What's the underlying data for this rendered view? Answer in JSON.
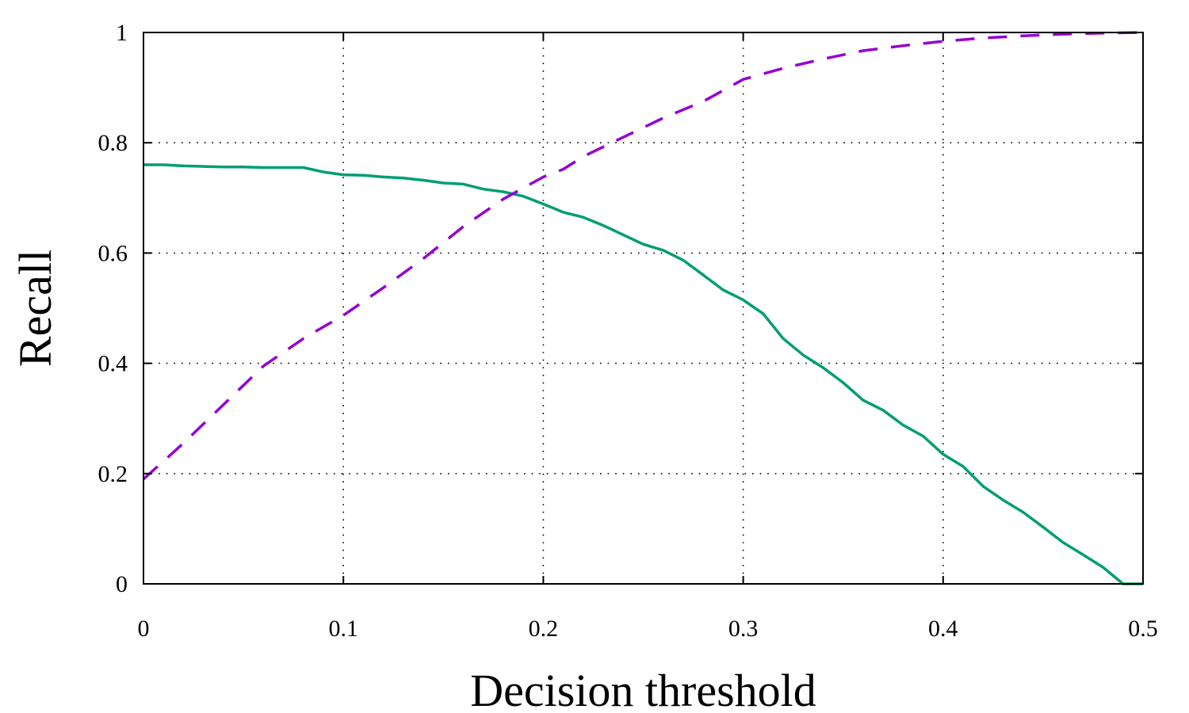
{
  "chart_data": {
    "type": "line",
    "title": "",
    "xlabel": "Decision threshold",
    "ylabel": "Recall",
    "xlim": [
      0,
      0.5
    ],
    "ylim": [
      0,
      1
    ],
    "xticks": [
      0,
      0.1,
      0.2,
      0.3,
      0.4,
      0.5
    ],
    "xtick_labels": [
      "0",
      "0.1",
      "0.2",
      "0.3",
      "0.4",
      "0.5"
    ],
    "yticks": [
      0,
      0.2,
      0.4,
      0.6,
      0.8,
      1
    ],
    "ytick_labels": [
      "0",
      "0.2",
      "0.4",
      "0.6",
      "0.8",
      "1"
    ],
    "grid": true,
    "legend": "none",
    "series": [
      {
        "name": "solid-green",
        "color": "#009e73",
        "style": "solid",
        "x": [
          0,
          0.01,
          0.02,
          0.03,
          0.04,
          0.05,
          0.06,
          0.07,
          0.08,
          0.09,
          0.1,
          0.11,
          0.12,
          0.13,
          0.14,
          0.15,
          0.16,
          0.17,
          0.18,
          0.19,
          0.2,
          0.21,
          0.22,
          0.23,
          0.24,
          0.25,
          0.26,
          0.27,
          0.28,
          0.29,
          0.3,
          0.31,
          0.32,
          0.33,
          0.34,
          0.35,
          0.36,
          0.37,
          0.38,
          0.39,
          0.4,
          0.41,
          0.42,
          0.43,
          0.44,
          0.45,
          0.46,
          0.47,
          0.48,
          0.49,
          0.5
        ],
        "y": [
          0.76,
          0.76,
          0.758,
          0.757,
          0.756,
          0.756,
          0.755,
          0.755,
          0.755,
          0.747,
          0.742,
          0.741,
          0.738,
          0.736,
          0.732,
          0.727,
          0.725,
          0.716,
          0.711,
          0.703,
          0.689,
          0.674,
          0.665,
          0.65,
          0.633,
          0.616,
          0.605,
          0.587,
          0.56,
          0.533,
          0.515,
          0.49,
          0.445,
          0.415,
          0.392,
          0.365,
          0.333,
          0.315,
          0.288,
          0.268,
          0.235,
          0.213,
          0.177,
          0.152,
          0.13,
          0.103,
          0.075,
          0.053,
          0.03,
          0.0,
          0.0
        ]
      },
      {
        "name": "dashed-purple",
        "color": "#9400d3",
        "style": "dashed",
        "x": [
          0,
          0.02,
          0.04,
          0.06,
          0.08,
          0.1,
          0.12,
          0.14,
          0.16,
          0.18,
          0.2,
          0.21,
          0.22,
          0.24,
          0.26,
          0.28,
          0.3,
          0.32,
          0.34,
          0.36,
          0.38,
          0.4,
          0.42,
          0.44,
          0.46,
          0.48,
          0.5
        ],
        "y": [
          0.19,
          0.255,
          0.325,
          0.395,
          0.445,
          0.487,
          0.537,
          0.59,
          0.648,
          0.698,
          0.738,
          0.752,
          0.775,
          0.81,
          0.845,
          0.875,
          0.915,
          0.935,
          0.952,
          0.967,
          0.976,
          0.984,
          0.99,
          0.994,
          0.997,
          0.999,
          1.0
        ]
      }
    ]
  }
}
